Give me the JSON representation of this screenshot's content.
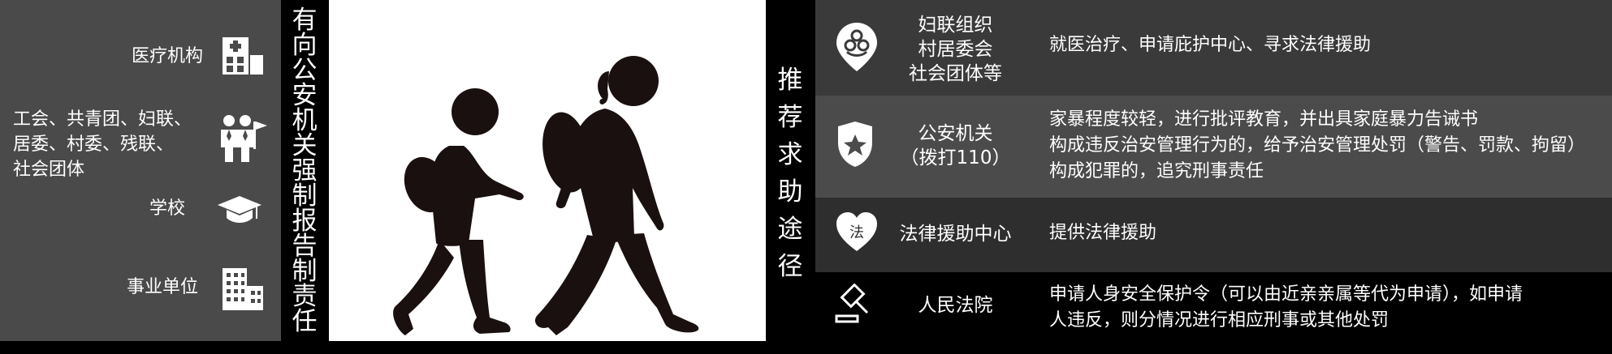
{
  "left_panel": {
    "items": [
      {
        "lines": [
          "医疗机构"
        ],
        "icon": "hospital-icon"
      },
      {
        "lines": [
          "工会、共青团、妇联、",
          "居委、村委、残联、",
          "社会团体"
        ],
        "icon": "people-flag-icon"
      },
      {
        "lines": [
          "学校"
        ],
        "icon": "graduation-cap-icon"
      },
      {
        "lines": [
          "事业单位"
        ],
        "icon": "office-building-icon"
      }
    ]
  },
  "middle_title": {
    "chars": [
      "有",
      "向",
      "公",
      "安",
      "机",
      "关",
      "强",
      "制",
      "报",
      "告",
      "制",
      "责",
      "任"
    ]
  },
  "right_title": {
    "chars": [
      "推",
      "荐",
      "求",
      "助",
      "途",
      "径"
    ]
  },
  "right_panel": {
    "rows": [
      {
        "name": [
          "妇联组织",
          "村居委会",
          "社会团体等"
        ],
        "desc": [
          "就医治疗、申请庇护中心、寻求法律援助"
        ],
        "icon": "womens-federation-icon"
      },
      {
        "name": [
          "公安机关",
          "（拨打110）"
        ],
        "desc": [
          "家暴程度较轻，进行批评教育，并出具家庭暴力告诫书",
          "构成违反治安管理行为的，给予治安管理处罚（警告、罚款、拘留）",
          "构成犯罪的，追究刑事责任"
        ],
        "icon": "police-badge-icon"
      },
      {
        "name": [
          "法律援助中心"
        ],
        "desc": [
          "提供法律援助"
        ],
        "icon": "legal-aid-heart-icon",
        "icon_text": "法"
      },
      {
        "name": [
          "人民法院"
        ],
        "desc": [
          "申请人身安全保护令（可以由近亲亲属等代为申请），如申请",
          "人违反，则分情况进行相应刑事或其他处罚"
        ],
        "icon": "gavel-icon"
      }
    ]
  },
  "colors": {
    "left_bg": "#4a4a4a",
    "row_dark": "#3a3a3a",
    "row_light": "#4b4b4b",
    "row_mid": "#2e2e2e",
    "row_black": "#000000"
  }
}
